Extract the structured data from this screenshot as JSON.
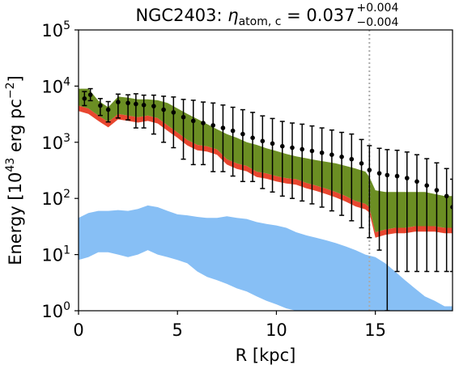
{
  "chart_data": {
    "type": "line",
    "title": {
      "prefix": "NGC2403: ",
      "eta": "η",
      "subscript": "atom, c",
      "equals": " = 0.037",
      "upper": "+0.004",
      "lower": "−0.004"
    },
    "xlabel": "R [kpc]",
    "ylabel": {
      "main": "Energy [10",
      "exp": "43",
      "mid": " erg pc",
      "exp2": "−2",
      "end": "]"
    },
    "xlim": [
      0,
      18.9
    ],
    "ylim_log10": [
      0,
      5
    ],
    "yscale": "log",
    "x_ticks": [
      0,
      5,
      10,
      15
    ],
    "x_tick_labels": [
      "0",
      "5",
      "10",
      "15"
    ],
    "y_ticks_log10": [
      0,
      1,
      2,
      3,
      4,
      5
    ],
    "y_tick_labels": [
      {
        "base": "10",
        "exp": "0"
      },
      {
        "base": "10",
        "exp": "1"
      },
      {
        "base": "10",
        "exp": "2"
      },
      {
        "base": "10",
        "exp": "3"
      },
      {
        "base": "10",
        "exp": "4"
      },
      {
        "base": "10",
        "exp": "5"
      }
    ],
    "vline_x": 14.7,
    "colors": {
      "green_band": "#6b8e23",
      "red_edge": "#e8462f",
      "blue_band": "#87bff5",
      "points": "#000000",
      "vline": "#aaaaaa"
    },
    "green_band": {
      "x": [
        0,
        0.5,
        1,
        1.5,
        2,
        2.5,
        3,
        3.5,
        4,
        4.5,
        5,
        5.5,
        6,
        6.5,
        7,
        7.5,
        8,
        8.5,
        9,
        9.5,
        10,
        10.5,
        11,
        11.5,
        12,
        12.5,
        13,
        13.5,
        14,
        14.5,
        14.7,
        15,
        15.5,
        16,
        16.5,
        17,
        17.5,
        18,
        18.5,
        18.9
      ],
      "upper": [
        9000,
        9000,
        5500,
        4200,
        6500,
        6200,
        5800,
        5800,
        5600,
        5000,
        4000,
        3200,
        2600,
        2100,
        1700,
        1400,
        1200,
        1000,
        900,
        780,
        700,
        620,
        560,
        520,
        480,
        450,
        420,
        380,
        340,
        300,
        240,
        140,
        130,
        130,
        130,
        130,
        130,
        120,
        110,
        110
      ],
      "lower": [
        4500,
        4000,
        3000,
        2300,
        3200,
        3000,
        2800,
        3000,
        2700,
        2000,
        1500,
        1100,
        900,
        850,
        750,
        500,
        420,
        380,
        300,
        280,
        250,
        230,
        220,
        190,
        170,
        150,
        130,
        110,
        90,
        80,
        70,
        25,
        28,
        30,
        30,
        32,
        32,
        32,
        30,
        30
      ]
    },
    "blue_band": {
      "x": [
        0,
        0.5,
        1,
        1.5,
        2,
        2.5,
        3,
        3.5,
        4,
        4.5,
        5,
        5.5,
        6,
        6.5,
        7,
        7.5,
        8,
        8.5,
        9,
        9.5,
        10,
        10.5,
        11,
        11.5,
        12,
        12.5,
        13,
        13.5,
        14,
        14.5,
        15,
        15.5,
        16,
        16.5,
        17,
        17.5,
        18,
        18.5,
        18.9
      ],
      "upper": [
        45,
        55,
        60,
        60,
        62,
        60,
        65,
        75,
        70,
        60,
        52,
        50,
        47,
        45,
        45,
        48,
        45,
        43,
        38,
        35,
        33,
        30,
        25,
        22,
        20,
        18,
        16,
        14,
        12,
        10,
        9,
        7,
        5,
        3.5,
        2.5,
        1.8,
        1.5,
        1.2,
        1.2
      ],
      "lower": [
        8,
        9,
        11,
        11,
        10,
        9,
        10,
        12,
        10,
        9,
        8,
        7,
        5,
        4,
        3.5,
        3,
        2.5,
        2.2,
        1.8,
        1.5,
        1.3,
        1.1,
        1,
        1,
        1,
        1,
        1,
        1,
        1,
        1,
        1,
        1,
        1,
        1,
        1,
        1,
        1,
        1,
        1
      ]
    },
    "points": {
      "x": [
        0.3,
        0.6,
        1.1,
        1.5,
        2.0,
        2.5,
        2.9,
        3.3,
        3.8,
        4.3,
        4.8,
        5.3,
        5.8,
        6.3,
        6.8,
        7.3,
        7.8,
        8.3,
        8.8,
        9.3,
        9.8,
        10.3,
        10.8,
        11.3,
        11.8,
        12.3,
        12.8,
        13.3,
        13.8,
        14.3,
        14.7,
        15.2,
        15.6,
        16.1,
        16.6,
        17.1,
        17.6,
        18.1,
        18.6,
        18.9
      ],
      "y": [
        6000,
        7000,
        4500,
        3800,
        5200,
        5000,
        4800,
        4600,
        4400,
        3800,
        3400,
        2800,
        2400,
        2200,
        2000,
        1800,
        1600,
        1400,
        1200,
        1050,
        950,
        850,
        800,
        750,
        700,
        650,
        600,
        550,
        500,
        420,
        320,
        280,
        260,
        250,
        230,
        200,
        170,
        140,
        110,
        70
      ],
      "err_up": [
        2000,
        2000,
        1500,
        1500,
        2000,
        2000,
        2500,
        2300,
        2500,
        2800,
        3000,
        3000,
        3200,
        3000,
        3000,
        2800,
        2600,
        2400,
        2200,
        1900,
        1700,
        1500,
        1400,
        1350,
        1250,
        1150,
        1050,
        950,
        900,
        700,
        550,
        500,
        480,
        470,
        440,
        400,
        340,
        290,
        230,
        150
      ],
      "err_down": [
        1500,
        1500,
        1500,
        1500,
        2500,
        2500,
        3000,
        2800,
        3000,
        2800,
        2600,
        2300,
        2000,
        1800,
        1700,
        1500,
        1350,
        1200,
        1000,
        900,
        820,
        740,
        700,
        660,
        620,
        580,
        540,
        500,
        460,
        390,
        300,
        268,
        259.7,
        245,
        225,
        195,
        165,
        135,
        105,
        65
      ]
    }
  }
}
